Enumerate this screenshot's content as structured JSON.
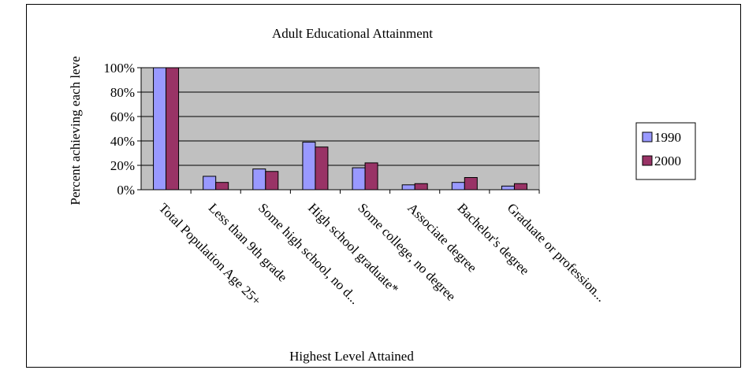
{
  "chart_data": {
    "type": "bar",
    "title": "Adult Educational Attainment",
    "xlabel": "Highest Level Attained",
    "ylabel": "Percent achieving each leve",
    "ylim": [
      0,
      100
    ],
    "yticks": [
      "0%",
      "20%",
      "40%",
      "60%",
      "80%",
      "100%"
    ],
    "ytick_values": [
      0,
      20,
      40,
      60,
      80,
      100
    ],
    "categories": [
      "Total Population Age 25+",
      "Less than 9th grade",
      "Some high school, no d...",
      "High school graduate*",
      "Some college, no degree",
      "Associate degree",
      "Bachelor's degree",
      "Graduate or profession..."
    ],
    "series": [
      {
        "name": "1990",
        "color": "#9999ff",
        "values": [
          100,
          11,
          17,
          39,
          18,
          4,
          6,
          3
        ]
      },
      {
        "name": "2000",
        "color": "#993366",
        "values": [
          100,
          6,
          15,
          35,
          22,
          5,
          10,
          5
        ]
      }
    ],
    "grid": true,
    "legend_position": "right",
    "plot_background": "#c0c0c0"
  }
}
